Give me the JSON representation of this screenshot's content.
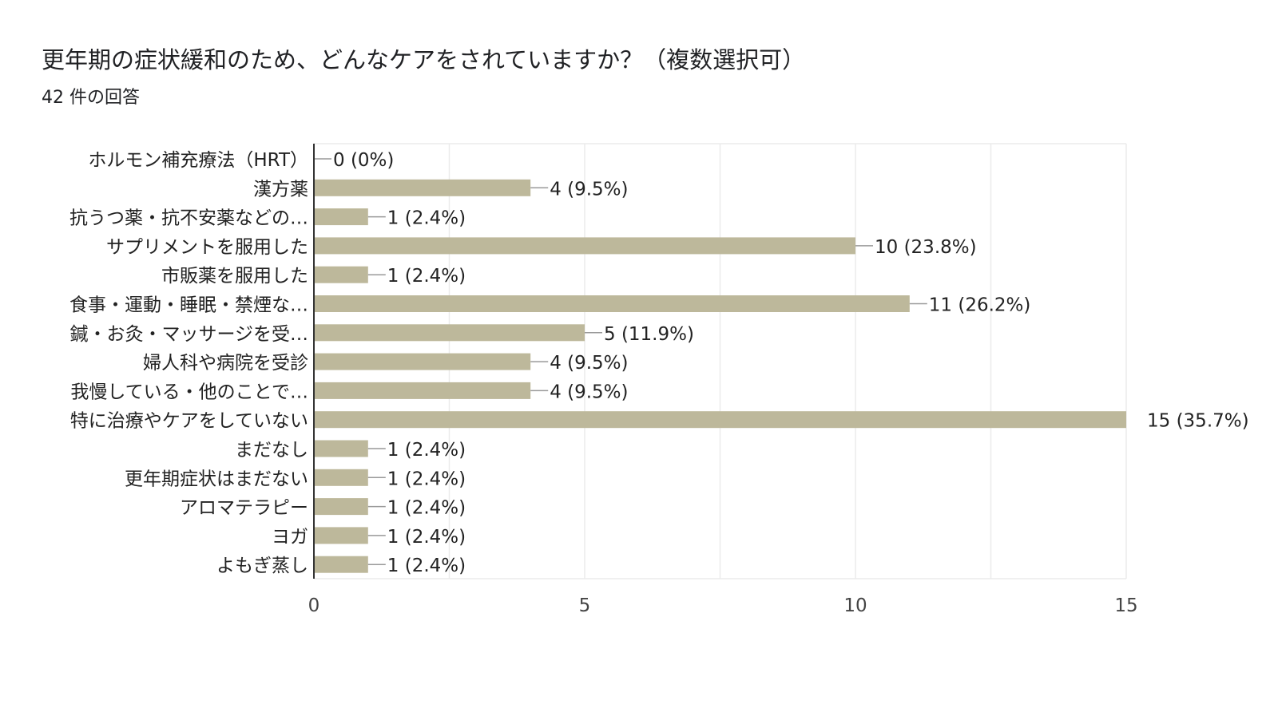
{
  "title": "更年期の症状緩和のため、どんなケアをされていますか？（複数選択可）",
  "subtitle": "42 件の回答",
  "chart_data": {
    "type": "bar",
    "orientation": "horizontal",
    "categories": [
      "ホルモン補充療法（HRT）",
      "漢方薬",
      "抗うつ薬・抗不安薬などの…",
      "サプリメントを服用した",
      "市販薬を服用した",
      "食事・運動・睡眠・禁煙な…",
      "鍼・お灸・マッサージを受…",
      "婦人科や病院を受診",
      "我慢している・他のことで…",
      "特に治療やケアをしていない",
      "まだなし",
      "更年期症状はまだない",
      "アロマテラピー",
      "ヨガ",
      "よもぎ蒸し"
    ],
    "values": [
      0,
      4,
      1,
      10,
      1,
      11,
      5,
      4,
      4,
      15,
      1,
      1,
      1,
      1,
      1
    ],
    "data_labels": [
      "0 (0%)",
      "4 (9.5%)",
      "1 (2.4%)",
      "10 (23.8%)",
      "1 (2.4%)",
      "11 (26.2%)",
      "5 (11.9%)",
      "4 (9.5%)",
      "4 (9.5%)",
      "15 (35.7%)",
      "1 (2.4%)",
      "1 (2.4%)",
      "1 (2.4%)",
      "1 (2.4%)",
      "1 (2.4%)"
    ],
    "xlim": [
      0,
      15
    ],
    "x_ticks": [
      "0",
      "5",
      "10",
      "15"
    ],
    "grid": true,
    "bar_color": "#bdb89b",
    "grid_color": "#ebebeb"
  }
}
